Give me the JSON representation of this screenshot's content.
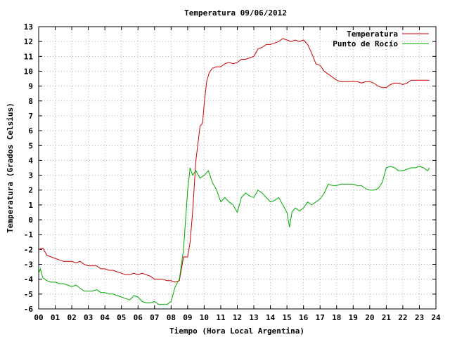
{
  "chart_data": {
    "type": "line",
    "title": "Temperatura 09/06/2012",
    "xlabel": "Tiempo (Hora Local Argentina)",
    "ylabel": "Temperatura (Grados Celsius)",
    "xlim": [
      0,
      24
    ],
    "ylim": [
      -6,
      13
    ],
    "x_ticks": [
      "00",
      "01",
      "02",
      "03",
      "04",
      "05",
      "06",
      "07",
      "08",
      "09",
      "10",
      "11",
      "12",
      "13",
      "14",
      "15",
      "16",
      "17",
      "18",
      "19",
      "20",
      "21",
      "22",
      "23",
      "24"
    ],
    "y_ticks": [
      "-6",
      "-5",
      "-4",
      "-3",
      "-2",
      "-1",
      "0",
      "1",
      "2",
      "3",
      "4",
      "5",
      "6",
      "7",
      "8",
      "9",
      "10",
      "11",
      "12",
      "13"
    ],
    "grid": true,
    "legend_position": "top-right",
    "series": [
      {
        "name": "Temperatura",
        "color": "#cc0000",
        "x": [
          0.0,
          0.25,
          0.5,
          0.75,
          1.0,
          1.25,
          1.5,
          1.75,
          2.0,
          2.25,
          2.5,
          2.75,
          3.0,
          3.25,
          3.5,
          3.75,
          4.0,
          4.25,
          4.5,
          4.75,
          5.0,
          5.25,
          5.5,
          5.75,
          6.0,
          6.25,
          6.5,
          6.75,
          7.0,
          7.25,
          7.5,
          7.75,
          8.0,
          8.25,
          8.5,
          8.75,
          9.0,
          9.15,
          9.3,
          9.5,
          9.75,
          9.9,
          10.0,
          10.15,
          10.3,
          10.5,
          10.75,
          11.0,
          11.25,
          11.5,
          11.75,
          12.0,
          12.25,
          12.5,
          12.75,
          13.0,
          13.25,
          13.5,
          13.75,
          14.0,
          14.25,
          14.5,
          14.75,
          15.0,
          15.25,
          15.5,
          15.75,
          16.0,
          16.25,
          16.5,
          16.75,
          17.0,
          17.25,
          17.5,
          17.75,
          18.0,
          18.25,
          18.5,
          18.75,
          19.0,
          19.25,
          19.5,
          19.75,
          20.0,
          20.25,
          20.5,
          20.75,
          21.0,
          21.25,
          21.5,
          21.75,
          22.0,
          22.25,
          22.5,
          22.75,
          23.0,
          23.25,
          23.5,
          23.6
        ],
        "values": [
          -2.0,
          -1.9,
          -2.4,
          -2.5,
          -2.6,
          -2.7,
          -2.8,
          -2.8,
          -2.8,
          -2.9,
          -2.8,
          -3.0,
          -3.1,
          -3.1,
          -3.1,
          -3.3,
          -3.3,
          -3.4,
          -3.4,
          -3.5,
          -3.6,
          -3.7,
          -3.7,
          -3.6,
          -3.7,
          -3.6,
          -3.7,
          -3.8,
          -4.0,
          -4.0,
          -4.0,
          -4.1,
          -4.1,
          -4.2,
          -4.1,
          -2.5,
          -2.5,
          -1.5,
          0.5,
          4.0,
          6.3,
          6.5,
          7.8,
          9.3,
          9.9,
          10.2,
          10.3,
          10.3,
          10.5,
          10.6,
          10.5,
          10.6,
          10.8,
          10.8,
          10.9,
          11.0,
          11.5,
          11.6,
          11.8,
          11.8,
          11.9,
          12.0,
          12.2,
          12.1,
          12.0,
          12.1,
          12.0,
          12.1,
          11.8,
          11.2,
          10.5,
          10.4,
          10.0,
          9.8,
          9.6,
          9.4,
          9.3,
          9.3,
          9.3,
          9.3,
          9.3,
          9.2,
          9.3,
          9.3,
          9.2,
          9.0,
          8.9,
          8.9,
          9.1,
          9.2,
          9.2,
          9.1,
          9.2,
          9.4,
          9.4,
          9.4,
          9.4,
          9.4,
          9.4
        ]
      },
      {
        "name": "Punto de Rocío",
        "color": "#00aa00",
        "x": [
          0.0,
          0.1,
          0.25,
          0.5,
          0.75,
          1.0,
          1.25,
          1.5,
          1.75,
          2.0,
          2.25,
          2.5,
          2.75,
          3.0,
          3.25,
          3.5,
          3.75,
          4.0,
          4.25,
          4.5,
          4.75,
          5.0,
          5.25,
          5.5,
          5.75,
          6.0,
          6.25,
          6.5,
          6.75,
          7.0,
          7.25,
          7.5,
          7.75,
          8.0,
          8.25,
          8.5,
          8.75,
          9.0,
          9.15,
          9.3,
          9.5,
          9.75,
          10.0,
          10.25,
          10.5,
          10.75,
          11.0,
          11.25,
          11.5,
          11.75,
          12.0,
          12.25,
          12.5,
          12.75,
          13.0,
          13.25,
          13.5,
          13.75,
          14.0,
          14.25,
          14.5,
          14.75,
          15.0,
          15.15,
          15.3,
          15.5,
          15.75,
          16.0,
          16.25,
          16.5,
          16.75,
          17.0,
          17.25,
          17.5,
          17.75,
          18.0,
          18.25,
          18.5,
          18.75,
          19.0,
          19.25,
          19.5,
          19.75,
          20.0,
          20.25,
          20.5,
          20.75,
          21.0,
          21.25,
          21.5,
          21.75,
          22.0,
          22.25,
          22.5,
          22.75,
          23.0,
          23.25,
          23.5,
          23.6
        ],
        "values": [
          -3.6,
          -3.3,
          -3.9,
          -4.1,
          -4.2,
          -4.2,
          -4.3,
          -4.3,
          -4.4,
          -4.5,
          -4.4,
          -4.6,
          -4.8,
          -4.8,
          -4.8,
          -4.7,
          -4.9,
          -4.9,
          -5.0,
          -5.0,
          -5.1,
          -5.2,
          -5.3,
          -5.4,
          -5.1,
          -5.2,
          -5.5,
          -5.6,
          -5.6,
          -5.5,
          -5.7,
          -5.7,
          -5.7,
          -5.5,
          -4.5,
          -4.0,
          -2.0,
          2.0,
          3.5,
          3.0,
          3.3,
          2.8,
          3.0,
          3.3,
          2.5,
          2.0,
          1.2,
          1.5,
          1.2,
          1.0,
          0.5,
          1.5,
          1.8,
          1.6,
          1.5,
          2.0,
          1.8,
          1.5,
          1.2,
          1.3,
          1.5,
          1.0,
          0.5,
          -0.5,
          0.5,
          0.8,
          0.6,
          0.8,
          1.2,
          1.0,
          1.2,
          1.4,
          1.8,
          2.4,
          2.3,
          2.3,
          2.4,
          2.4,
          2.4,
          2.4,
          2.3,
          2.3,
          2.1,
          2.0,
          2.0,
          2.1,
          2.5,
          3.5,
          3.6,
          3.5,
          3.3,
          3.3,
          3.4,
          3.5,
          3.5,
          3.6,
          3.5,
          3.3,
          3.5
        ]
      }
    ]
  }
}
